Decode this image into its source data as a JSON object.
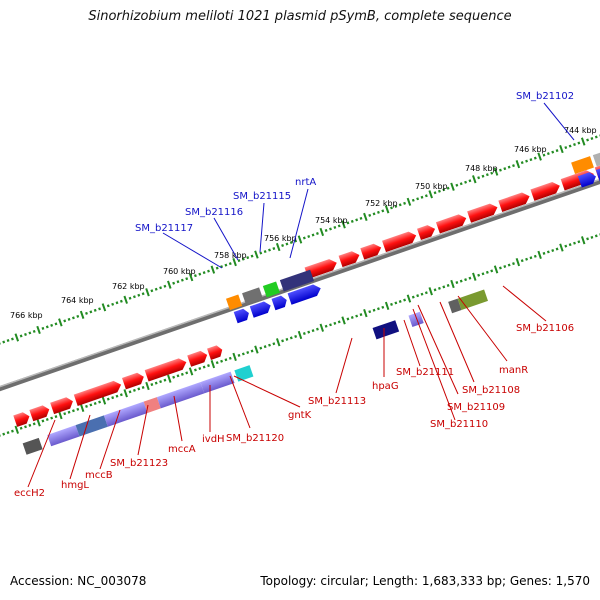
{
  "title": "Sinorhizobium meliloti 1021 plasmid pSymB, complete sequence",
  "footer": {
    "accession": "Accession: NC_003078",
    "summary": "Topology: circular; Length: 1,683,333 bp; Genes: 1,570"
  },
  "axis_ticks": [
    "744 kbp",
    "746 kbp",
    "748 kbp",
    "750 kbp",
    "752 kbp",
    "754 kbp",
    "756 kbp",
    "758 kbp",
    "760 kbp",
    "762 kbp",
    "764 kbp",
    "766 kbp"
  ],
  "labels_top": [
    "SM_b21102",
    "nrtA",
    "SM_b21115",
    "SM_b21116",
    "SM_b21117"
  ],
  "labels_bottom": [
    "eccH2",
    "hmgL",
    "mccB",
    "SM_b21123",
    "mccA",
    "ivdH",
    "SM_b21120",
    "gntK",
    "SM_b21113",
    "hpaG",
    "SM_b21111",
    "SM_b21109",
    "SM_b21110",
    "SM_b21108",
    "manR",
    "SM_b21106"
  ],
  "colors": {
    "forward_gene": "#ff0000",
    "reverse_gene": "#ff0000",
    "label_blue": "#1414c8",
    "label_red": "#c80000",
    "backbone": "#808080",
    "tick_green": "#228b22"
  }
}
